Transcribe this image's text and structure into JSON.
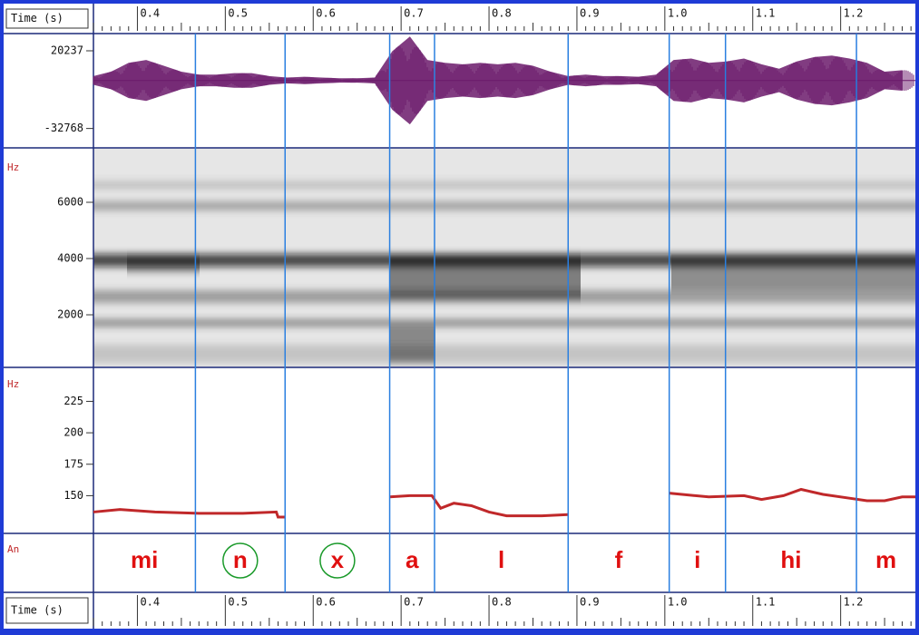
{
  "time_axis": {
    "label": "Time (s)",
    "xlim": [
      0.35,
      1.285
    ],
    "minor_per_major": 10,
    "ticks": [
      0.4,
      0.5,
      0.6,
      0.7,
      0.8,
      0.9,
      {
        "value": 1,
        "label": "1.0"
      },
      1.1,
      1.2
    ]
  },
  "waveform": {
    "color": "#6b1a6b",
    "ylim": [
      -46000,
      32000
    ],
    "yticks": [
      20237,
      -32768
    ],
    "x": [
      0.35,
      0.37,
      0.39,
      0.41,
      0.43,
      0.45,
      0.47,
      0.49,
      0.51,
      0.53,
      0.55,
      0.57,
      0.59,
      0.61,
      0.63,
      0.65,
      0.67,
      0.69,
      0.71,
      0.73,
      0.75,
      0.77,
      0.79,
      0.81,
      0.83,
      0.85,
      0.87,
      0.89,
      0.91,
      0.93,
      0.95,
      0.97,
      0.99,
      1.01,
      1.03,
      1.05,
      1.07,
      1.09,
      1.11,
      1.13,
      1.15,
      1.17,
      1.19,
      1.21,
      1.23,
      1.25,
      1.27
    ],
    "amplitude": [
      3000,
      6000,
      12000,
      14000,
      10000,
      6000,
      4000,
      4000,
      5000,
      5000,
      3000,
      2000,
      2500,
      2000,
      1500,
      1500,
      2000,
      20000,
      30000,
      14000,
      12000,
      11000,
      12000,
      11000,
      12000,
      10000,
      6000,
      3000,
      4000,
      3000,
      3000,
      2500,
      4000,
      14000,
      15000,
      12000,
      13000,
      15000,
      11000,
      8000,
      13000,
      16000,
      17000,
      15000,
      12000,
      6000,
      7000
    ]
  },
  "spectrogram": {
    "unit": "Hz",
    "ylim": [
      130,
      7935
    ],
    "yticks": [
      2000,
      4000,
      6000
    ]
  },
  "pitch": {
    "unit": "Hz",
    "color": "#c0282a",
    "ylim": [
      120,
      252
    ],
    "yticks": [
      150,
      175,
      200,
      225
    ],
    "x": [
      0.35,
      0.38,
      0.42,
      0.47,
      0.52,
      0.558,
      0.56,
      0.568,
      null,
      0.687,
      0.71,
      0.735,
      0.74,
      0.745,
      0.76,
      0.78,
      0.8,
      0.82,
      0.86,
      0.89,
      null,
      1.005,
      1.05,
      1.09,
      1.11,
      1.135,
      1.155,
      1.18,
      1.21,
      1.23,
      1.25,
      1.27,
      1.285
    ],
    "values": [
      137,
      139,
      137,
      136,
      136,
      137,
      133,
      133,
      null,
      149,
      150,
      150,
      145,
      140,
      144,
      142,
      137,
      134,
      134,
      135,
      null,
      152,
      149,
      150,
      147,
      150,
      155,
      151,
      148,
      146,
      146,
      149,
      149
    ]
  },
  "annotation": {
    "label": "An",
    "boundaries": [
      0.466,
      0.568,
      0.687,
      0.738,
      0.89,
      1.005,
      1.069,
      1.218
    ],
    "segments": [
      {
        "text": "mi",
        "circled": false
      },
      {
        "text": "n",
        "circled": true
      },
      {
        "text": "x",
        "circled": true
      },
      {
        "text": "a",
        "circled": false
      },
      {
        "text": "l",
        "circled": false
      },
      {
        "text": "f",
        "circled": false
      },
      {
        "text": "i",
        "circled": false
      },
      {
        "text": "hi",
        "circled": false
      },
      {
        "text": "m",
        "circled": false
      }
    ]
  }
}
